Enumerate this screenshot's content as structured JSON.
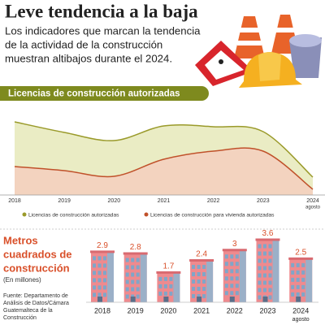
{
  "header": {
    "title": "Leve tendencia a la baja",
    "subtitle": [
      "Los indicadores que marcan la tendencia",
      "de la actividad de la construcción",
      "muestran altibajos durante el 2024."
    ]
  },
  "chart_data": [
    {
      "type": "area",
      "title": "Licencias de construcción autorizadas",
      "categories": [
        "2018",
        "2019",
        "2020",
        "2021",
        "2022",
        "2023",
        "2024"
      ],
      "x_sublabel": "agosto",
      "ylim": [
        0,
        100
      ],
      "series": [
        {
          "name": "Licencias de construcción autorizadas",
          "color": "#9a9a2a",
          "fill": "#eaecc4",
          "values": [
            90,
            77,
            67,
            85,
            84,
            78,
            22
          ]
        },
        {
          "name": "Licencias de construcción para vivienda autorizadas",
          "color": "#c0512a",
          "fill": "#f3d3bf",
          "values": [
            35,
            30,
            23,
            44,
            54,
            54,
            7
          ]
        }
      ]
    },
    {
      "type": "bar",
      "title": [
        "Metros",
        "cuadrados de",
        "construcción"
      ],
      "subtitle": "(En millones)",
      "source": [
        "Fuente: Departamento de",
        "Análisis de Datos/Cámara",
        "Guatemalteca de la",
        "Construcción"
      ],
      "categories": [
        "2018",
        "2019",
        "2020",
        "2021",
        "2022",
        "2023",
        "2024"
      ],
      "x_sublabel": "agosto",
      "values": [
        2.9,
        2.8,
        1.7,
        2.4,
        3,
        3.6,
        2.5
      ],
      "color": "#ef8a8e",
      "ylim": [
        0,
        4
      ]
    }
  ]
}
